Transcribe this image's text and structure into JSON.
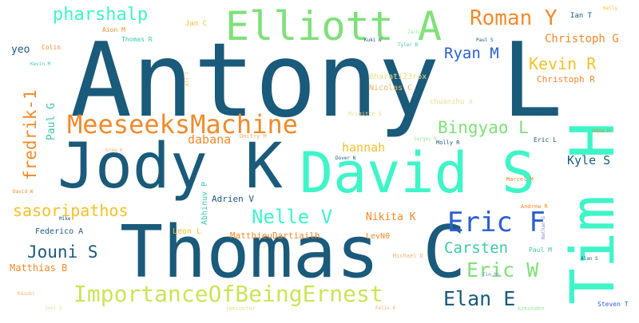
{
  "palette": {
    "dark_blue": "#1a5a7a",
    "orange": "#f28a2b",
    "light_green": "#7fe07a",
    "yellow_green": "#cde35a",
    "aqua": "#3ff5c8",
    "blue": "#2a5fd0",
    "amber": "#f2c12b",
    "teal": "#3fc8a8",
    "pale_orange": "#f8b070",
    "pale_yellow": "#e8e090",
    "pale_green": "#a0e6a0",
    "pale_blue": "#8090c8"
  },
  "words": [
    {
      "text": "Antony L",
      "color": "#1a5a7a"
    },
    {
      "text": "Thomas C",
      "color": "#1a5a7a"
    },
    {
      "text": "Jody K",
      "color": "#1a5a7a"
    },
    {
      "text": "David S",
      "color": "#3ff5c8"
    },
    {
      "text": "Tim H",
      "color": "#3ff5c8"
    },
    {
      "text": "Elliott A",
      "color": "#7fe07a"
    },
    {
      "text": "MeeseeksMachine",
      "color": "#f28a2b"
    },
    {
      "text": "ImportanceOfBeingErnest",
      "color": "#cde35a"
    },
    {
      "text": "Eric F",
      "color": "#2a5fd0"
    },
    {
      "text": "Roman Y",
      "color": "#f28a2b"
    },
    {
      "text": "Elan E",
      "color": "#1a5a7a"
    },
    {
      "text": "Eric W",
      "color": "#7fe07a"
    },
    {
      "text": "Nelle V",
      "color": "#3ff5c8"
    },
    {
      "text": "pharshalp",
      "color": "#3ff5c8"
    },
    {
      "text": "fredrik-1",
      "color": "#f28a2b"
    },
    {
      "text": "sasoripathos",
      "color": "#f2c12b"
    },
    {
      "text": "Jouni S",
      "color": "#1a5a7a"
    },
    {
      "text": "Bingyao L",
      "color": "#7fe07a"
    },
    {
      "text": "Kevin R",
      "color": "#f2c12b"
    },
    {
      "text": "Ryan M",
      "color": "#2a5fd0"
    },
    {
      "text": "Carsten",
      "color": "#3fc8a8"
    },
    {
      "text": "Christoph G",
      "color": "#f28a2b"
    },
    {
      "text": "hannah",
      "color": "#f2c12b"
    },
    {
      "text": "dabana",
      "color": "#f28a2b"
    },
    {
      "text": "Kyle S",
      "color": "#1a5a7a"
    },
    {
      "text": "Nikita K",
      "color": "#f28a2b"
    },
    {
      "text": "Paul G",
      "color": "#3fc8a8"
    },
    {
      "text": "Christoph R",
      "color": "#f28a2b"
    },
    {
      "text": "yeo",
      "color": "#1a5a7a"
    },
    {
      "text": "Matthias B",
      "color": "#f28a2b"
    },
    {
      "text": "Federico A",
      "color": "#1a5a7a"
    },
    {
      "text": "Adrien V",
      "color": "#1a5a7a"
    },
    {
      "text": "MatthieuDartiailh",
      "color": "#f28a2b"
    },
    {
      "text": "LevN0",
      "color": "#f28a2b"
    },
    {
      "text": "Leon L",
      "color": "#f2c12b"
    },
    {
      "text": "Abhinuv P",
      "color": "#3fc8a8"
    },
    {
      "text": "Bharat123rox",
      "color": "#e8e090"
    },
    {
      "text": "Nicolas C",
      "color": "#f8b070"
    },
    {
      "text": "chuanzhu x",
      "color": "#e8e090"
    },
    {
      "text": "Ian T",
      "color": "#1a5a7a"
    },
    {
      "text": "Jan C",
      "color": "#f2c12b"
    },
    {
      "text": "Aion M",
      "color": "#f28a2b"
    },
    {
      "text": "Thomas R",
      "color": "#3fc8a8"
    },
    {
      "text": "Colin",
      "color": "#f28a2b"
    },
    {
      "text": "Eric L",
      "color": "#1a5a7a"
    },
    {
      "text": "Marcel M",
      "color": "#f28a2b"
    },
    {
      "text": "Andrew R",
      "color": "#f28a2b"
    },
    {
      "text": "Paul M",
      "color": "#3fc8a8"
    },
    {
      "text": "Steven T",
      "color": "#2a5fd0"
    },
    {
      "text": "Dmitry M",
      "color": "#f8b070"
    },
    {
      "text": "Molly R",
      "color": "#1a5a7a"
    },
    {
      "text": "Mrigitte S",
      "color": "#e8e090"
    },
    {
      "text": "Michael D",
      "color": "#f8b070"
    },
    {
      "text": "Dover N",
      "color": "#1a5a7a"
    },
    {
      "text": "jomioster",
      "color": "#e8e090"
    },
    {
      "text": "kzkunden",
      "color": "#a0e6a0"
    },
    {
      "text": "Greg K",
      "color": "#f8b070"
    },
    {
      "text": "David W",
      "color": "#f28a2b"
    },
    {
      "text": "Kuki W",
      "color": "#1a5a7a"
    },
    {
      "text": "Paul S",
      "color": "#1a5a7a"
    },
    {
      "text": "Alan S",
      "color": "#1a5a7a"
    },
    {
      "text": "Kelly",
      "color": "#f2c12b"
    },
    {
      "text": "Mike",
      "color": "#1a5a7a"
    },
    {
      "text": "Hana H",
      "color": "#f28a2b"
    },
    {
      "text": "Tyler B",
      "color": "#3fc8a8"
    },
    {
      "text": "Kevin M",
      "color": "#3fc8a8"
    },
    {
      "text": "Sergey K",
      "color": "#a0e6a0"
    },
    {
      "text": "Tim Mo",
      "color": "#8090c8"
    },
    {
      "text": "Ali T",
      "color": "#f2c12b"
    },
    {
      "text": "Nathan G",
      "color": "#8090c8"
    },
    {
      "text": "Kazuki",
      "color": "#f8b070"
    },
    {
      "text": "Joel S",
      "color": "#e8e090"
    },
    {
      "text": "Zach T",
      "color": "#a0e6a0"
    },
    {
      "text": "Felix K",
      "color": "#f8b070"
    }
  ]
}
